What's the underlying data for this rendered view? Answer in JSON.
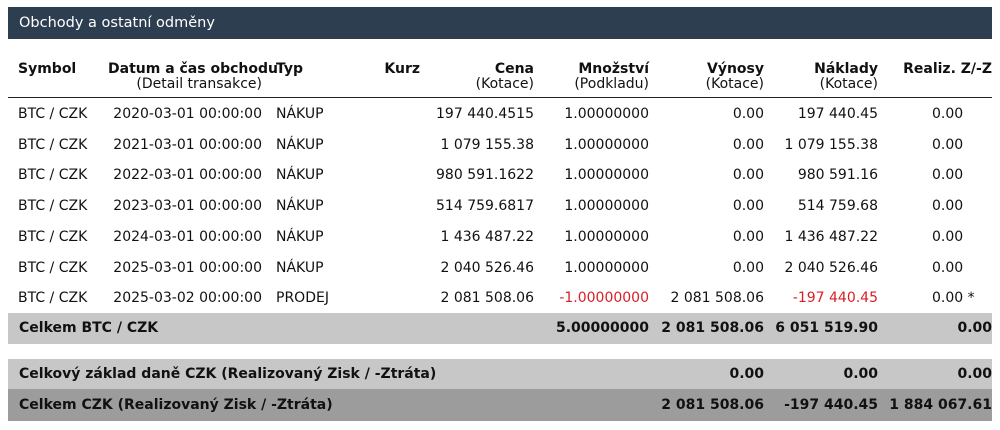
{
  "section_title": "Obchody a ostatní odměny",
  "columns": {
    "symbol": "Symbol",
    "datetime": "Datum a čas obchodu",
    "datetime_sub": "(Detail transakce)",
    "type": "Typ",
    "rate": "Kurz",
    "price": "Cena",
    "price_sub": "(Kotace)",
    "qty": "Množství",
    "qty_sub": "(Podkladu)",
    "revenue": "Výnosy",
    "revenue_sub": "(Kotace)",
    "cost": "Náklady",
    "cost_sub": "(Kotace)",
    "pnl": "Realiz. Z/-Z"
  },
  "trades": [
    {
      "symbol": "BTC / CZK",
      "datetime": "2020-03-01 00:00:00",
      "type": "NÁKUP",
      "rate": "",
      "price": "197 440.4515",
      "qty": "1.00000000",
      "revenue": "0.00",
      "cost": "197 440.45",
      "pnl": "0.00"
    },
    {
      "symbol": "BTC / CZK",
      "datetime": "2021-03-01 00:00:00",
      "type": "NÁKUP",
      "rate": "",
      "price": "1 079 155.38",
      "qty": "1.00000000",
      "revenue": "0.00",
      "cost": "1 079 155.38",
      "pnl": "0.00"
    },
    {
      "symbol": "BTC / CZK",
      "datetime": "2022-03-01 00:00:00",
      "type": "NÁKUP",
      "rate": "",
      "price": "980 591.1622",
      "qty": "1.00000000",
      "revenue": "0.00",
      "cost": "980 591.16",
      "pnl": "0.00"
    },
    {
      "symbol": "BTC / CZK",
      "datetime": "2023-03-01 00:00:00",
      "type": "NÁKUP",
      "rate": "",
      "price": "514 759.6817",
      "qty": "1.00000000",
      "revenue": "0.00",
      "cost": "514 759.68",
      "pnl": "0.00"
    },
    {
      "symbol": "BTC / CZK",
      "datetime": "2024-03-01 00:00:00",
      "type": "NÁKUP",
      "rate": "",
      "price": "1 436 487.22",
      "qty": "1.00000000",
      "revenue": "0.00",
      "cost": "1 436 487.22",
      "pnl": "0.00"
    },
    {
      "symbol": "BTC / CZK",
      "datetime": "2025-03-01 00:00:00",
      "type": "NÁKUP",
      "rate": "",
      "price": "2 040 526.46",
      "qty": "1.00000000",
      "revenue": "0.00",
      "cost": "2 040 526.46",
      "pnl": "0.00"
    },
    {
      "symbol": "BTC / CZK",
      "datetime": "2025-03-02 00:00:00",
      "type": "PRODEJ",
      "rate": "",
      "price": "2 081 508.06",
      "qty": "-1.00000000",
      "revenue": "2 081 508.06",
      "cost": "-197 440.45",
      "pnl": "0.00 *"
    }
  ],
  "subtotal": {
    "label": "Celkem BTC / CZK",
    "qty": "5.00000000",
    "revenue": "2 081 508.06",
    "cost": "6 051 519.90",
    "pnl": "0.00"
  },
  "tax_base": {
    "label": "Celkový základ daně CZK (Realizovaný Zisk / -Ztráta)",
    "revenue": "0.00",
    "cost": "0.00",
    "pnl": "0.00"
  },
  "grand_total": {
    "label": "Celkem CZK (Realizovaný Zisk / -Ztráta)",
    "revenue": "2 081 508.06",
    "cost": "-197 440.45",
    "pnl": "1 884 067.61"
  },
  "colors": {
    "header_bg": "#2c3e50",
    "negative": "#d81f26",
    "total_bg": "#c7c7c7",
    "grand_bg": "#9c9c9c"
  }
}
